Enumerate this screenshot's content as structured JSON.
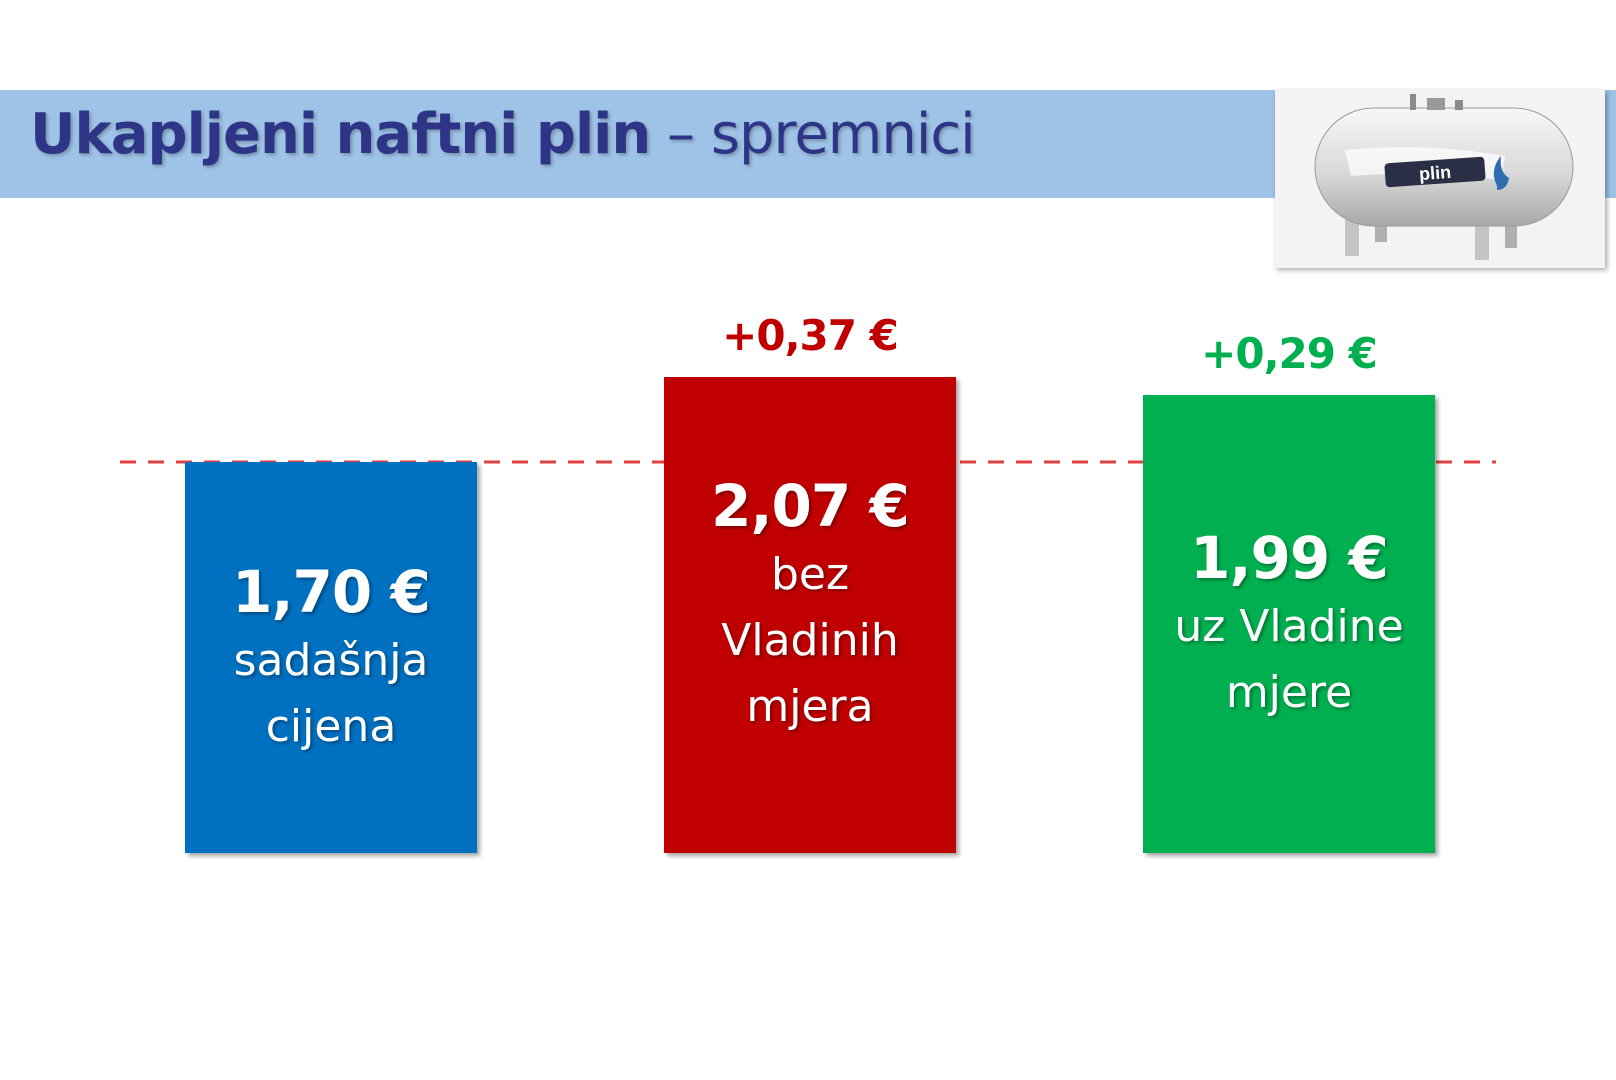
{
  "title": {
    "bold": "Ukapljeni naftni plin",
    "light": " – spremnici"
  },
  "photo": {
    "brand": "plin"
  },
  "colors": {
    "band": "#9ec3e6",
    "title": "#2e3586",
    "blue": "#0070c0",
    "red": "#c00000",
    "green": "#00b050",
    "dashed": "#e04040"
  },
  "chart_data": {
    "type": "bar",
    "unit": "€",
    "baseline": 1.7,
    "ylim": [
      1.7,
      2.07
    ],
    "bars": [
      {
        "value": 1.7,
        "value_label": "1,70 €",
        "label_lines": [
          "sadašnja",
          "cijena"
        ],
        "delta": "",
        "color": "#0070c0"
      },
      {
        "value": 2.07,
        "value_label": "2,07 €",
        "label_lines": [
          "bez",
          "Vladinih",
          "mjera"
        ],
        "delta": "+0,37 €",
        "delta_color": "#c00000",
        "color": "#c00000"
      },
      {
        "value": 1.99,
        "value_label": "1,99 €",
        "label_lines": [
          "uz Vladine",
          "mjere"
        ],
        "delta": "+0,29 €",
        "delta_color": "#00b050",
        "color": "#00b050"
      }
    ]
  }
}
